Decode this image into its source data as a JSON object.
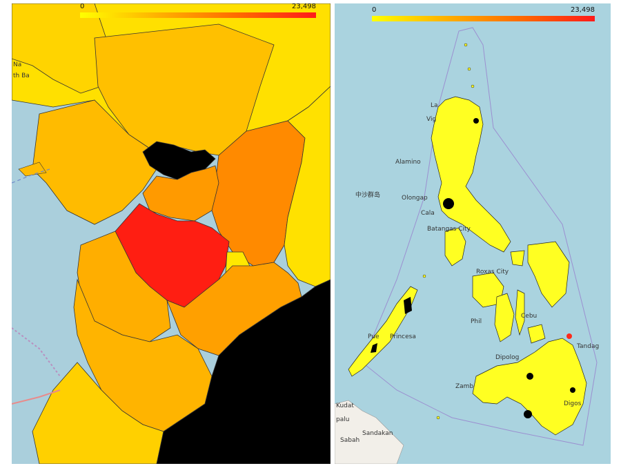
{
  "panels": {
    "left": {
      "legend": {
        "min_label": "0",
        "max_label": "23,498"
      },
      "place_labels": {
        "north_bay": "th Ba",
        "na": "Na"
      }
    },
    "right": {
      "legend": {
        "min_label": "0",
        "max_label": "23,498"
      },
      "place_labels": {
        "laoag": "La",
        "vigan": "Vig",
        "alaminos": "Alamino",
        "spratly": "中沙群岛",
        "olongapo": "Olongap",
        "calapan": "Cala",
        "batangas": "Batangas City",
        "roxas": "Roxas City",
        "cebu": "Cebu",
        "puerto_princesa_1": "Pue",
        "puerto_princesa_2": "Princesa",
        "philippines": "Phil",
        "tandag": "Tandag",
        "dipolog": "Dipolog",
        "zamboanga": "Zamb",
        "kudat": "Kudat",
        "sandakan": "Sandakan",
        "sabah": "Sabah",
        "digos": "Digos",
        "kota": "palu"
      }
    }
  },
  "colors": {
    "scale_low": "#ffff00",
    "scale_mid": "#ffb000",
    "scale_high": "#ff1a1a",
    "no_data": "#000000",
    "water": "#aad3df",
    "land_outside": "#f2efe9"
  }
}
